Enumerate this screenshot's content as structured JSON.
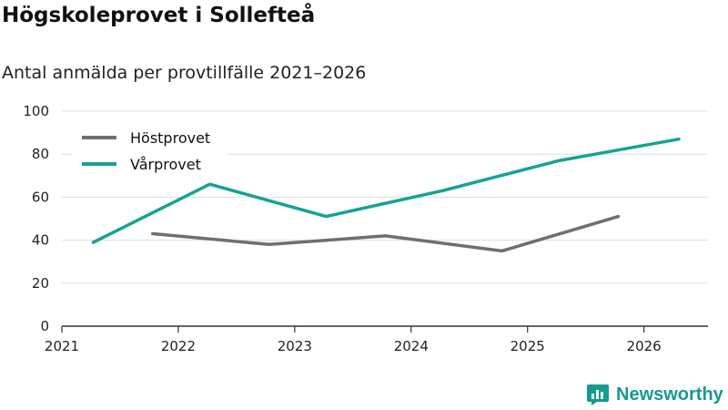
{
  "title": "Högskoleprovet i Sollefteå",
  "subtitle": "Antal anmälda per provtillfälle 2021–2026",
  "brand": {
    "name": "Newsworthy",
    "icon": "newsworthy-logo-icon"
  },
  "chart_data": {
    "type": "line",
    "title": "Högskoleprovet i Sollefteå",
    "subtitle": "Antal anmälda per provtillfälle 2021–2026",
    "xlabel": "",
    "ylabel": "",
    "ylim": [
      0,
      100
    ],
    "yticks": [
      0,
      20,
      40,
      60,
      80,
      100
    ],
    "xlim": [
      2021,
      2026.55
    ],
    "xticks": [
      2021,
      2022,
      2023,
      2024,
      2025,
      2026
    ],
    "grid": true,
    "legend_position": "top-left",
    "series": [
      {
        "name": "Höstprovet",
        "color": "#6f6f73",
        "points": [
          {
            "x": 2021.78,
            "y": 43
          },
          {
            "x": 2022.78,
            "y": 38
          },
          {
            "x": 2023.78,
            "y": 42
          },
          {
            "x": 2024.78,
            "y": 35
          },
          {
            "x": 2025.78,
            "y": 51
          }
        ]
      },
      {
        "name": "Vårprovet",
        "color": "#16a294",
        "points": [
          {
            "x": 2021.27,
            "y": 39
          },
          {
            "x": 2022.27,
            "y": 66
          },
          {
            "x": 2023.27,
            "y": 51
          },
          {
            "x": 2024.27,
            "y": 63
          },
          {
            "x": 2025.27,
            "y": 77
          },
          {
            "x": 2026.3,
            "y": 87
          }
        ]
      }
    ]
  }
}
